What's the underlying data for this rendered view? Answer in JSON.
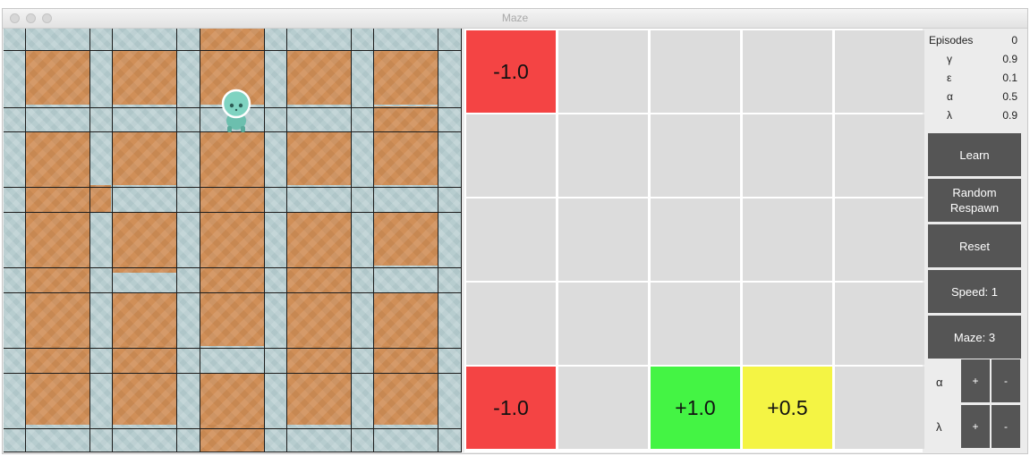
{
  "window": {
    "title": "Maze"
  },
  "value_grid": {
    "cells": [
      [
        "-1.0",
        "",
        "",
        "",
        ""
      ],
      [
        "",
        "",
        "",
        "",
        ""
      ],
      [
        "",
        "",
        "",
        "",
        ""
      ],
      [
        "",
        "",
        "",
        "",
        ""
      ],
      [
        "-1.0",
        "",
        "+1.0",
        "+0.5",
        ""
      ]
    ],
    "colors": [
      [
        "#f44444",
        "#dcdcdc",
        "#dcdcdc",
        "#dcdcdc",
        "#dcdcdc"
      ],
      [
        "#dcdcdc",
        "#dcdcdc",
        "#dcdcdc",
        "#dcdcdc",
        "#dcdcdc"
      ],
      [
        "#dcdcdc",
        "#dcdcdc",
        "#dcdcdc",
        "#dcdcdc",
        "#dcdcdc"
      ],
      [
        "#dcdcdc",
        "#dcdcdc",
        "#dcdcdc",
        "#dcdcdc",
        "#dcdcdc"
      ],
      [
        "#f44444",
        "#dcdcdc",
        "#44f444",
        "#f4f444",
        "#dcdcdc"
      ]
    ]
  },
  "stats": [
    {
      "key": "Episodes",
      "value": "0"
    },
    {
      "key": "γ",
      "value": "0.9"
    },
    {
      "key": "ε",
      "value": "0.1"
    },
    {
      "key": "α",
      "value": "0.5"
    },
    {
      "key": "λ",
      "value": "0.9"
    }
  ],
  "buttons": {
    "learn": "Learn",
    "random_respawn": "Random\nRespawn",
    "reset": "Reset",
    "speed": "Speed: 1",
    "maze": "Maze: 3"
  },
  "params": [
    {
      "label": "α",
      "plus": "+",
      "minus": "-"
    },
    {
      "label": "λ",
      "plus": "+",
      "minus": "-"
    }
  ],
  "colors": {
    "button_bg": "#555555",
    "floor": "#d08f58",
    "water": "#b7cdcf"
  }
}
